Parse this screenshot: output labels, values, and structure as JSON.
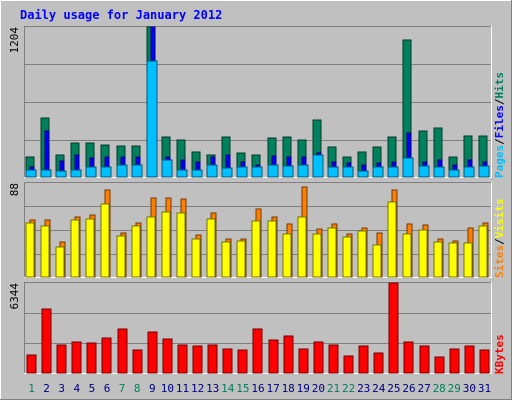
{
  "title": "Daily usage for January 2012",
  "colors": {
    "background": "#c0c0c0",
    "title": "#0000ff",
    "hits": "#00805c",
    "files": "#0000ff",
    "pages": "#00c0ff",
    "visits": "#ffff00",
    "sites": "#ff8000",
    "kbytes": "#ff0000",
    "weekend_label": "#00805c",
    "weekday_label": "#000080"
  },
  "days": [
    "1",
    "2",
    "3",
    "4",
    "5",
    "6",
    "7",
    "8",
    "9",
    "10",
    "11",
    "12",
    "13",
    "14",
    "15",
    "16",
    "17",
    "18",
    "19",
    "20",
    "21",
    "22",
    "23",
    "24",
    "25",
    "26",
    "27",
    "28",
    "29",
    "30",
    "31"
  ],
  "weekend_days": [
    1,
    7,
    8,
    14,
    15,
    21,
    22,
    28,
    29
  ],
  "chart_data": [
    {
      "type": "bar",
      "panel": "top",
      "y_max_label": "1204",
      "ylim": [
        0,
        1204
      ],
      "ylabel": [
        "Pages",
        "/",
        "Files",
        "/",
        "Hits"
      ],
      "series": [
        {
          "name": "Hits",
          "values": [
            160,
            470,
            180,
            270,
            270,
            260,
            250,
            250,
            1204,
            320,
            300,
            200,
            180,
            320,
            190,
            180,
            310,
            320,
            300,
            460,
            240,
            160,
            200,
            240,
            320,
            1100,
            370,
            390,
            160,
            330,
            330
          ]
        },
        {
          "name": "Files",
          "values": [
            80,
            370,
            130,
            180,
            150,
            160,
            160,
            160,
            1204,
            160,
            140,
            120,
            160,
            180,
            120,
            100,
            170,
            160,
            160,
            190,
            120,
            110,
            100,
            110,
            120,
            350,
            120,
            140,
            100,
            140,
            120
          ]
        },
        {
          "name": "Pages",
          "values": [
            60,
            60,
            50,
            60,
            80,
            80,
            100,
            100,
            930,
            140,
            60,
            60,
            100,
            70,
            80,
            80,
            100,
            90,
            100,
            180,
            80,
            80,
            50,
            80,
            80,
            150,
            90,
            80,
            60,
            80,
            90
          ]
        }
      ]
    },
    {
      "type": "bar",
      "panel": "middle",
      "y_max_label": "88",
      "ylim": [
        0,
        88
      ],
      "ylabel": [
        "Sites",
        "/",
        "Visits"
      ],
      "series": [
        {
          "name": "Sites",
          "values": [
            53,
            53,
            33,
            56,
            58,
            81,
            41,
            51,
            74,
            74,
            73,
            39,
            60,
            36,
            36,
            64,
            56,
            50,
            84,
            45,
            50,
            40,
            46,
            41,
            81,
            50,
            49,
            36,
            34,
            46,
            51
          ]
        },
        {
          "name": "Visits",
          "values": [
            51,
            48,
            28,
            53,
            54,
            68,
            38,
            48,
            56,
            61,
            60,
            36,
            54,
            33,
            34,
            52,
            52,
            40,
            56,
            40,
            46,
            37,
            43,
            30,
            70,
            40,
            44,
            33,
            32,
            32,
            48
          ]
        }
      ]
    },
    {
      "type": "bar",
      "panel": "bottom",
      "y_max_label": "6344",
      "ylim": [
        0,
        6344
      ],
      "ylabel": [
        "KBytes"
      ],
      "series": [
        {
          "name": "KBytes",
          "values": [
            1300,
            4500,
            2000,
            2200,
            2100,
            2500,
            3100,
            1600,
            2900,
            2400,
            2000,
            1900,
            2000,
            1700,
            1600,
            3100,
            2300,
            2600,
            1700,
            2200,
            2000,
            1200,
            1900,
            1400,
            6344,
            2200,
            1900,
            1100,
            1700,
            1900,
            1600
          ]
        }
      ]
    }
  ]
}
